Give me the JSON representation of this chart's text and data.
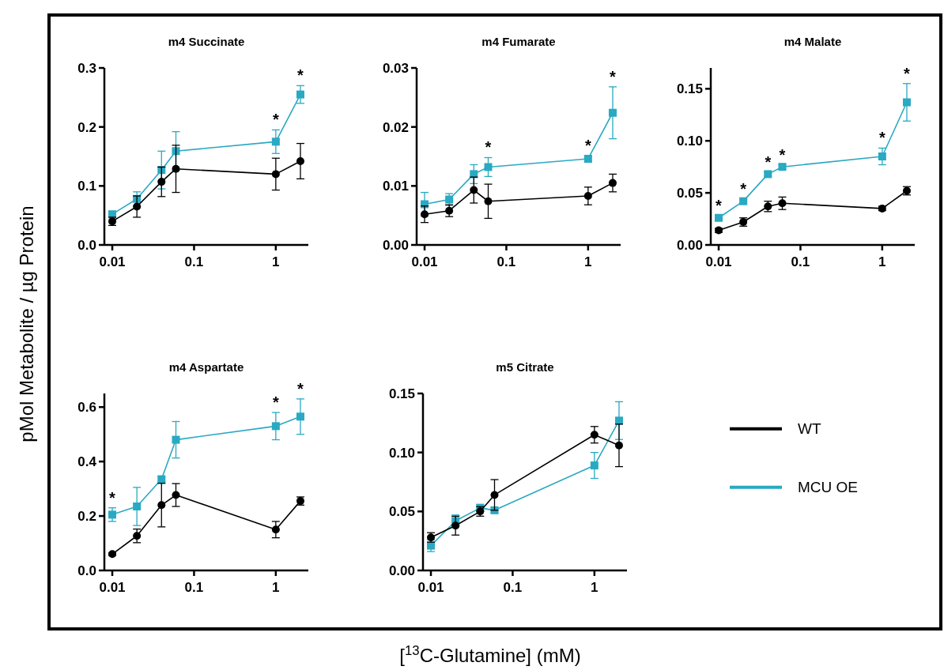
{
  "chart_data": [
    {
      "type": "line",
      "title": "m4 Succinate",
      "ylabel": "pMol Metabolite / µg Protein",
      "log": "x",
      "x": [
        0.01,
        0.02,
        0.04,
        0.06,
        1,
        2
      ],
      "xlim": [
        0.008,
        2.5
      ],
      "xticks": [
        0.01,
        0.1,
        1
      ],
      "ylim": [
        0,
        0.3
      ],
      "yticks": [
        {
          "value": 0,
          "label": "0.0"
        },
        {
          "value": 0.1,
          "label": "0.1"
        },
        {
          "value": 0.2,
          "label": "0.2"
        },
        {
          "value": 0.3,
          "label": "0.3"
        }
      ],
      "legend": false,
      "series": [
        {
          "color": "#000000",
          "marker": "circle",
          "values": [
            0.04,
            0.065,
            0.107,
            0.129,
            0.12,
            0.142
          ],
          "errors": [
            0.007,
            0.018,
            0.025,
            0.04,
            0.027,
            0.03
          ]
        },
        {
          "color": "#29a9c2",
          "marker": "square",
          "values": [
            0.052,
            0.078,
            0.127,
            0.159,
            0.175,
            0.255
          ],
          "errors": [
            0.005,
            0.012,
            0.032,
            0.033,
            0.02,
            0.015
          ]
        }
      ],
      "annotations": [
        {
          "text": "*",
          "x": 1,
          "y": 0.175
        },
        {
          "text": "*",
          "x": 2,
          "y": 0.255
        }
      ]
    },
    {
      "type": "line",
      "title": "m4 Fumarate",
      "log": "x",
      "x": [
        0.01,
        0.02,
        0.04,
        0.06,
        1,
        2
      ],
      "xlim": [
        0.008,
        2.5
      ],
      "xticks": [
        0.01,
        0.1,
        1
      ],
      "ylim": [
        0,
        0.03
      ],
      "yticks": [
        {
          "value": 0,
          "label": "0.00"
        },
        {
          "value": 0.01,
          "label": "0.01"
        },
        {
          "value": 0.02,
          "label": "0.02"
        },
        {
          "value": 0.03,
          "label": "0.03"
        }
      ],
      "legend": false,
      "series": [
        {
          "color": "#000000",
          "marker": "circle",
          "values": [
            0.0052,
            0.0058,
            0.0093,
            0.0074,
            0.0083,
            0.0105
          ],
          "errors": [
            0.0014,
            0.001,
            0.0022,
            0.0029,
            0.0015,
            0.0015
          ]
        },
        {
          "color": "#29a9c2",
          "marker": "square",
          "values": [
            0.0069,
            0.0077,
            0.012,
            0.0132,
            0.0146,
            0.0224
          ],
          "errors": [
            0.002,
            0.001,
            0.0016,
            0.0016,
            0.0005,
            0.0044
          ]
        }
      ],
      "annotations": [
        {
          "text": "*",
          "x": 0.06,
          "y": 0.0132
        },
        {
          "text": "*",
          "x": 1,
          "y": 0.0146
        },
        {
          "text": "*",
          "x": 2,
          "y": 0.0224
        }
      ]
    },
    {
      "type": "line",
      "title": "m4 Malate",
      "log": "x",
      "x": [
        0.01,
        0.02,
        0.04,
        0.06,
        1,
        2
      ],
      "xlim": [
        0.008,
        2.5
      ],
      "xticks": [
        0.01,
        0.1,
        1
      ],
      "ylim": [
        0,
        0.17
      ],
      "yticks": [
        {
          "value": 0,
          "label": "0.00"
        },
        {
          "value": 0.05,
          "label": "0.05"
        },
        {
          "value": 0.1,
          "label": "0.10"
        },
        {
          "value": 0.15,
          "label": "0.15"
        }
      ],
      "legend": false,
      "series": [
        {
          "color": "#000000",
          "marker": "circle",
          "values": [
            0.014,
            0.022,
            0.037,
            0.04,
            0.035,
            0.052
          ],
          "errors": [
            0.002,
            0.004,
            0.005,
            0.006,
            0.002,
            0.004
          ]
        },
        {
          "color": "#29a9c2",
          "marker": "square",
          "values": [
            0.026,
            0.042,
            0.068,
            0.075,
            0.085,
            0.137
          ],
          "errors": [
            0.002,
            0.002,
            0.002,
            0.002,
            0.008,
            0.018
          ]
        }
      ],
      "annotations": [
        {
          "text": "*",
          "x": 0.01,
          "y": 0.026
        },
        {
          "text": "*",
          "x": 0.02,
          "y": 0.042
        },
        {
          "text": "*",
          "x": 0.04,
          "y": 0.068
        },
        {
          "text": "*",
          "x": 0.06,
          "y": 0.075
        },
        {
          "text": "*",
          "x": 1,
          "y": 0.085
        },
        {
          "text": "*",
          "x": 2,
          "y": 0.137
        }
      ]
    },
    {
      "type": "line",
      "title": "m4 Aspartate",
      "log": "x",
      "x": [
        0.01,
        0.02,
        0.04,
        0.06,
        1,
        2
      ],
      "xlim": [
        0.008,
        2.5
      ],
      "xticks": [
        0.01,
        0.1,
        1
      ],
      "ylim": [
        0,
        0.65
      ],
      "yticks": [
        {
          "value": 0,
          "label": "0.0"
        },
        {
          "value": 0.2,
          "label": "0.2"
        },
        {
          "value": 0.4,
          "label": "0.4"
        },
        {
          "value": 0.6,
          "label": "0.6"
        }
      ],
      "legend": false,
      "series": [
        {
          "color": "#000000",
          "marker": "circle",
          "values": [
            0.06,
            0.127,
            0.24,
            0.277,
            0.15,
            0.255
          ],
          "errors": [
            0.005,
            0.025,
            0.08,
            0.042,
            0.03,
            0.015
          ]
        },
        {
          "color": "#29a9c2",
          "marker": "square",
          "values": [
            0.205,
            0.235,
            0.335,
            0.48,
            0.53,
            0.565
          ],
          "errors": [
            0.025,
            0.07,
            0.01,
            0.067,
            0.05,
            0.065
          ]
        }
      ],
      "annotations": [
        {
          "text": "*",
          "x": 0.01,
          "y": 0.205
        },
        {
          "text": "*",
          "x": 1,
          "y": 0.53
        },
        {
          "text": "*",
          "x": 2,
          "y": 0.565
        }
      ]
    },
    {
      "type": "line",
      "title": "m5 Citrate",
      "xlabel": "[$^{13}$C-Glutamine] (mM)",
      "log": "x",
      "x": [
        0.01,
        0.02,
        0.04,
        0.06,
        1,
        2
      ],
      "xlim": [
        0.008,
        2.5
      ],
      "xticks": [
        0.01,
        0.1,
        1
      ],
      "ylim": [
        0,
        0.15
      ],
      "yticks": [
        {
          "value": 0,
          "label": "0.00"
        },
        {
          "value": 0.05,
          "label": "0.05"
        },
        {
          "value": 0.1,
          "label": "0.10"
        },
        {
          "value": 0.15,
          "label": "0.15"
        }
      ],
      "legend": "right",
      "series": [
        {
          "name": "WT",
          "color": "#000000",
          "marker": "circle",
          "values": [
            0.028,
            0.038,
            0.05,
            0.064,
            0.115,
            0.106
          ],
          "errors": [
            0.004,
            0.008,
            0.004,
            0.013,
            0.007,
            0.018
          ]
        },
        {
          "name": "MCU OE",
          "color": "#29a9c2",
          "marker": "square",
          "values": [
            0.021,
            0.042,
            0.053,
            0.051,
            0.089,
            0.127
          ],
          "errors": [
            0.005,
            0.005,
            0.003,
            0.002,
            0.011,
            0.016
          ]
        }
      ]
    }
  ]
}
